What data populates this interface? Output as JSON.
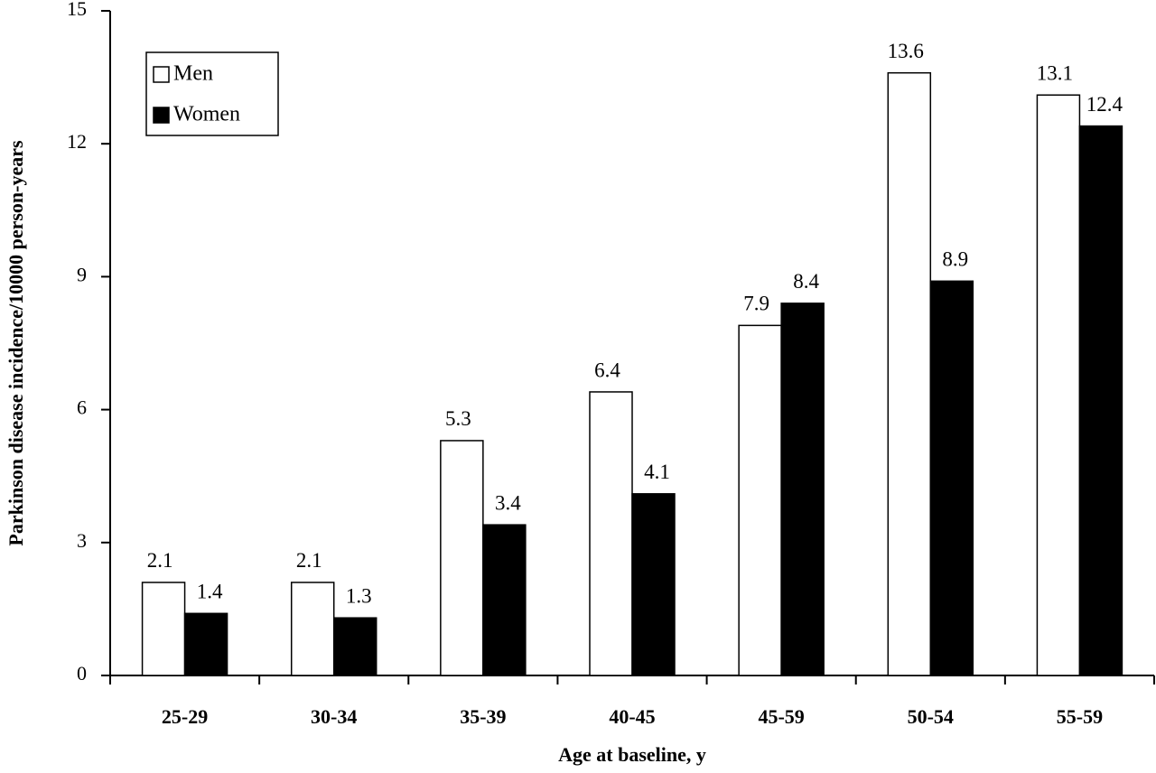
{
  "chart_data": {
    "type": "bar",
    "x_label": "Age at baseline, y",
    "y_label": "Parkinson disease incidence/10000 person-years",
    "categories": [
      "25-29",
      "30-34",
      "35-39",
      "40-45",
      "45-59",
      "50-54",
      "55-59"
    ],
    "series": [
      {
        "name": "Men",
        "color": "#ffffff",
        "values": [
          2.1,
          2.1,
          5.3,
          6.4,
          7.9,
          13.6,
          13.1
        ]
      },
      {
        "name": "Women",
        "color": "#000000",
        "values": [
          1.4,
          1.3,
          3.4,
          4.1,
          8.4,
          8.9,
          12.4
        ]
      }
    ],
    "ylim": [
      0,
      15
    ],
    "yticks": [
      0,
      3,
      6,
      9,
      12,
      15
    ],
    "legend": "upper left"
  }
}
